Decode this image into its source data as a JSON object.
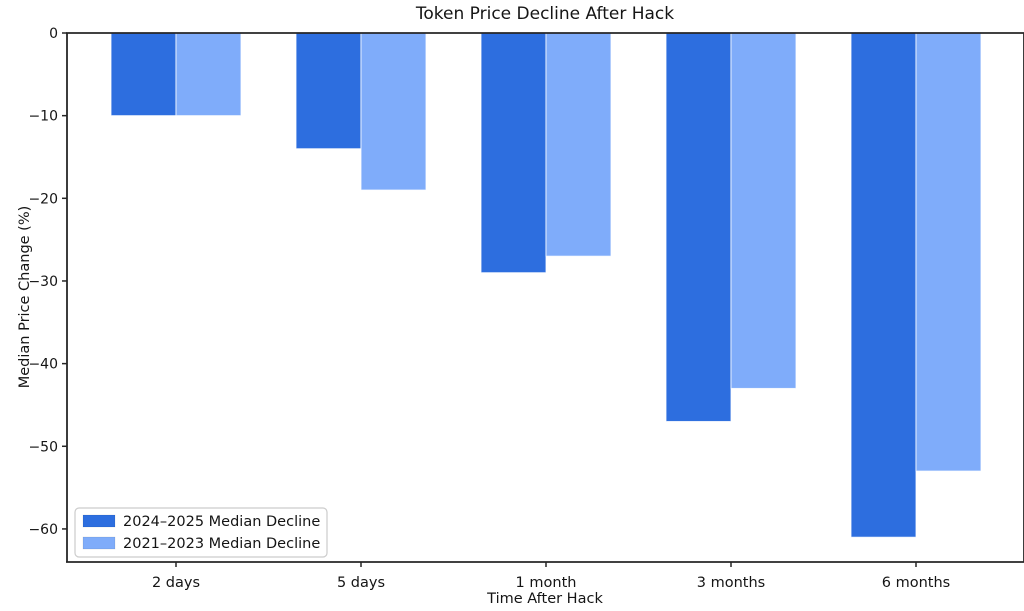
{
  "title": "Token Price Decline After Hack",
  "chart_data": {
    "type": "bar",
    "title": "Token Price Decline After Hack",
    "categories": [
      "2 days",
      "5 days",
      "1 month",
      "3 months",
      "6 months"
    ],
    "series": [
      {
        "name": "2024–2025 Median Decline",
        "color": "#2d6edf",
        "values": [
          -10,
          -14,
          -29,
          -47,
          -61
        ]
      },
      {
        "name": "2021–2023 Median Decline",
        "color": "#7facfa",
        "values": [
          -10,
          -19,
          -27,
          -43,
          -53
        ]
      }
    ],
    "xlabel": "Time After Hack",
    "ylabel": "Median Price Change (%)",
    "ytick_labels": [
      "0",
      "−10",
      "−20",
      "−30",
      "−40",
      "−50",
      "−60"
    ],
    "ytick_values": [
      0,
      -10,
      -20,
      -30,
      -40,
      -50,
      -60
    ],
    "ylim": [
      -64,
      0
    ],
    "grid": false,
    "legend_position": "lower left",
    "axis_color": "#262626",
    "background": "#ffffff"
  }
}
